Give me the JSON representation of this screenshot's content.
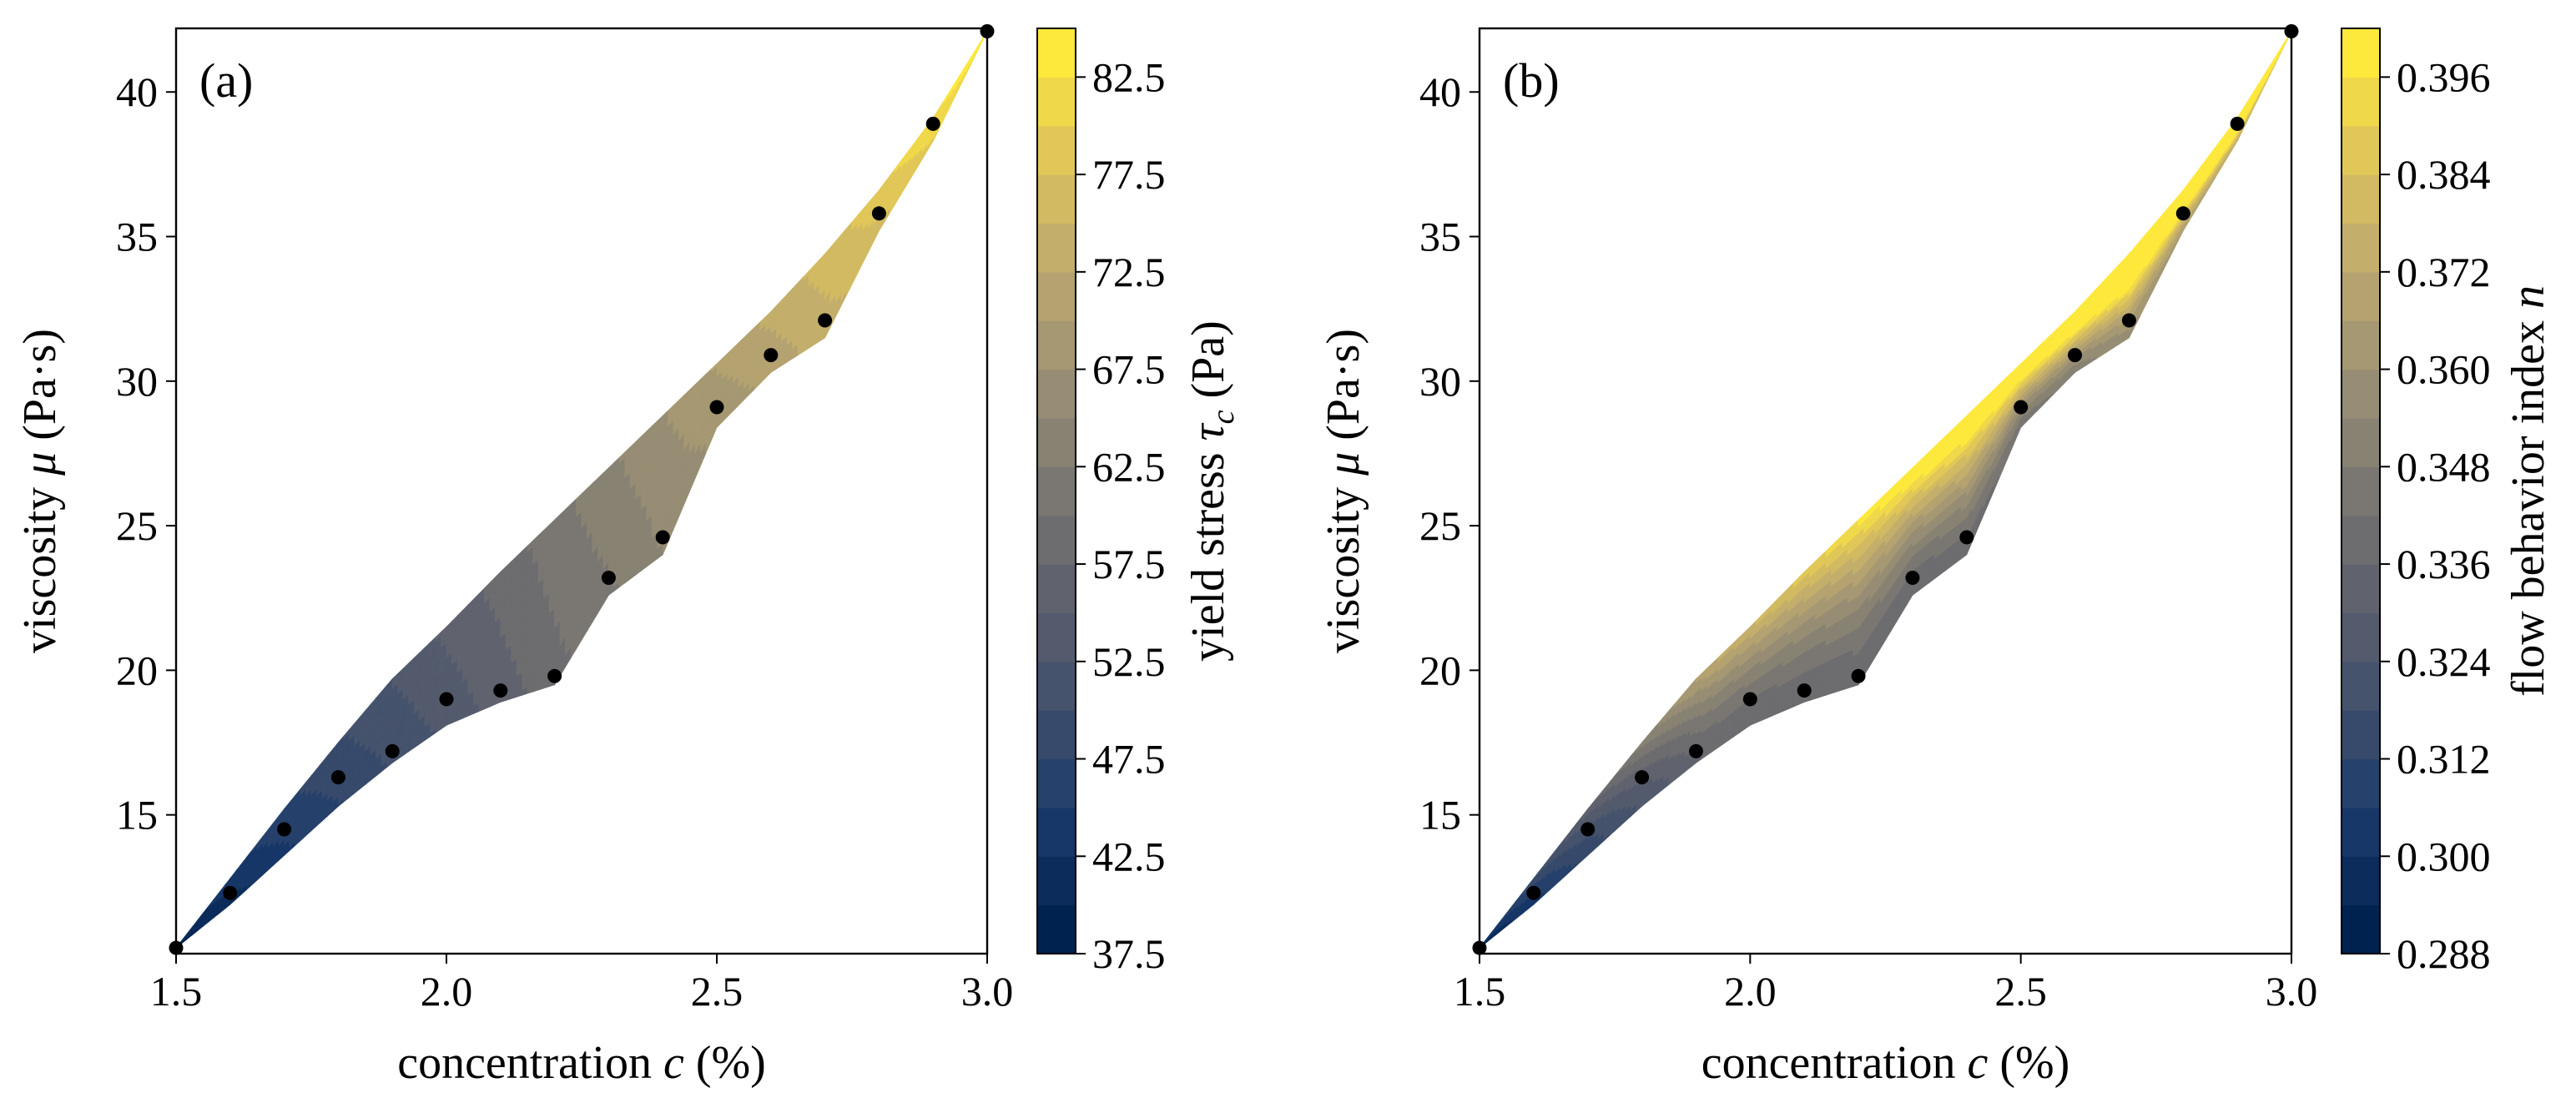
{
  "colors": {
    "cmap": [
      "#00224e",
      "#1a3a6b",
      "#3f4f6b",
      "#5d616e",
      "#7a7772",
      "#9a9074",
      "#bca96f",
      "#ddc35c",
      "#fde83c"
    ],
    "marker": "#000000",
    "axis": "#000000",
    "background": "#ffffff"
  },
  "chart_data": [
    {
      "type": "contour-scatter",
      "panel_label": "(a)",
      "xlabel": {
        "prefix": "concentration ",
        "var": "c",
        "suffix": " (%)"
      },
      "ylabel": {
        "prefix": "viscosity ",
        "var": "μ",
        "suffix": " (Pa·s)"
      },
      "xlim": [
        1.5,
        3.0
      ],
      "ylim": [
        10.2,
        42.2
      ],
      "xticks": [
        1.5,
        2.0,
        2.5,
        3.0
      ],
      "xtick_labels": [
        "1.5",
        "2.0",
        "2.5",
        "3.0"
      ],
      "yticks": [
        15,
        20,
        25,
        30,
        35,
        40
      ],
      "ytick_labels": [
        "15",
        "20",
        "25",
        "30",
        "35",
        "40"
      ],
      "colorbar": {
        "label": {
          "prefix": "yield stress ",
          "var": "τ",
          "sub": "c",
          "suffix": " (Pa)"
        },
        "range": [
          37.5,
          85.0
        ],
        "ticks": [
          37.5,
          42.5,
          47.5,
          52.5,
          57.5,
          62.5,
          67.5,
          72.5,
          77.5,
          82.5
        ],
        "tick_labels": [
          "37.5",
          "42.5",
          "47.5",
          "52.5",
          "57.5",
          "62.5",
          "67.5",
          "72.5",
          "77.5",
          "82.5"
        ],
        "levels": 19
      },
      "field_trend": "increases from lower-left (~38) to upper-right (~85)",
      "points": {
        "c": [
          1.5,
          1.6,
          1.7,
          1.8,
          1.9,
          2.0,
          2.1,
          2.2,
          2.3,
          2.4,
          2.5,
          2.6,
          2.7,
          2.8,
          2.9,
          3.0
        ],
        "mu": [
          10.4,
          12.3,
          14.5,
          16.3,
          17.2,
          19.0,
          19.3,
          19.8,
          23.2,
          24.6,
          29.1,
          30.9,
          32.1,
          35.8,
          38.9,
          42.1
        ]
      },
      "domain_upper": {
        "c": [
          1.5,
          1.6,
          1.7,
          1.8,
          1.9,
          2.0,
          2.1,
          2.2,
          2.3,
          2.4,
          2.5,
          2.6,
          2.7,
          2.8,
          2.9,
          3.0
        ],
        "mu": [
          10.4,
          12.8,
          15.2,
          17.5,
          19.7,
          21.5,
          23.4,
          25.2,
          27.0,
          28.8,
          30.6,
          32.4,
          34.4,
          36.6,
          39.1,
          42.1
        ]
      },
      "domain_lower": {
        "c": [
          1.5,
          1.6,
          1.7,
          1.8,
          1.9,
          2.0,
          2.1,
          2.2,
          2.3,
          2.4,
          2.5,
          2.6,
          2.7,
          2.8,
          2.9,
          3.0
        ],
        "mu": [
          10.4,
          11.9,
          13.6,
          15.3,
          16.8,
          18.1,
          18.9,
          19.5,
          22.6,
          24.0,
          28.4,
          30.3,
          31.5,
          35.2,
          38.3,
          42.1
        ]
      }
    },
    {
      "type": "contour-scatter",
      "panel_label": "(b)",
      "xlabel": {
        "prefix": "concentration ",
        "var": "c",
        "suffix": " (%)"
      },
      "ylabel": {
        "prefix": "viscosity ",
        "var": "μ",
        "suffix": " (Pa·s)"
      },
      "xlim": [
        1.5,
        3.0
      ],
      "ylim": [
        10.2,
        42.2
      ],
      "xticks": [
        1.5,
        2.0,
        2.5,
        3.0
      ],
      "xtick_labels": [
        "1.5",
        "2.0",
        "2.5",
        "3.0"
      ],
      "yticks": [
        15,
        20,
        25,
        30,
        35,
        40
      ],
      "ytick_labels": [
        "15",
        "20",
        "25",
        "30",
        "35",
        "40"
      ],
      "colorbar": {
        "label": {
          "prefix": "flow behavior index ",
          "var": "n",
          "sub": "",
          "suffix": ""
        },
        "range": [
          0.288,
          0.402
        ],
        "ticks": [
          0.288,
          0.3,
          0.312,
          0.324,
          0.336,
          0.348,
          0.36,
          0.372,
          0.384,
          0.396
        ],
        "tick_labels": [
          "0.288",
          "0.300",
          "0.312",
          "0.324",
          "0.336",
          "0.348",
          "0.360",
          "0.372",
          "0.384",
          "0.396"
        ],
        "levels": 19
      },
      "field_trend": "low (~0.29) at lower-left, ~0.34 along lower edge, high (~0.40) along upper edge and upper-right",
      "points": {
        "c": [
          1.5,
          1.6,
          1.7,
          1.8,
          1.9,
          2.0,
          2.1,
          2.2,
          2.3,
          2.4,
          2.5,
          2.6,
          2.7,
          2.8,
          2.9,
          3.0
        ],
        "mu": [
          10.4,
          12.3,
          14.5,
          16.3,
          17.2,
          19.0,
          19.3,
          19.8,
          23.2,
          24.6,
          29.1,
          30.9,
          32.1,
          35.8,
          38.9,
          42.1
        ]
      },
      "domain_upper": {
        "c": [
          1.5,
          1.6,
          1.7,
          1.8,
          1.9,
          2.0,
          2.1,
          2.2,
          2.3,
          2.4,
          2.5,
          2.6,
          2.7,
          2.8,
          2.9,
          3.0
        ],
        "mu": [
          10.4,
          12.8,
          15.2,
          17.5,
          19.7,
          21.5,
          23.4,
          25.2,
          27.0,
          28.8,
          30.6,
          32.4,
          34.4,
          36.6,
          39.1,
          42.1
        ]
      },
      "domain_lower": {
        "c": [
          1.5,
          1.6,
          1.7,
          1.8,
          1.9,
          2.0,
          2.1,
          2.2,
          2.3,
          2.4,
          2.5,
          2.6,
          2.7,
          2.8,
          2.9,
          3.0
        ],
        "mu": [
          10.4,
          11.9,
          13.6,
          15.3,
          16.8,
          18.1,
          18.9,
          19.5,
          22.6,
          24.0,
          28.4,
          30.3,
          31.5,
          35.2,
          38.3,
          42.1
        ]
      }
    }
  ]
}
